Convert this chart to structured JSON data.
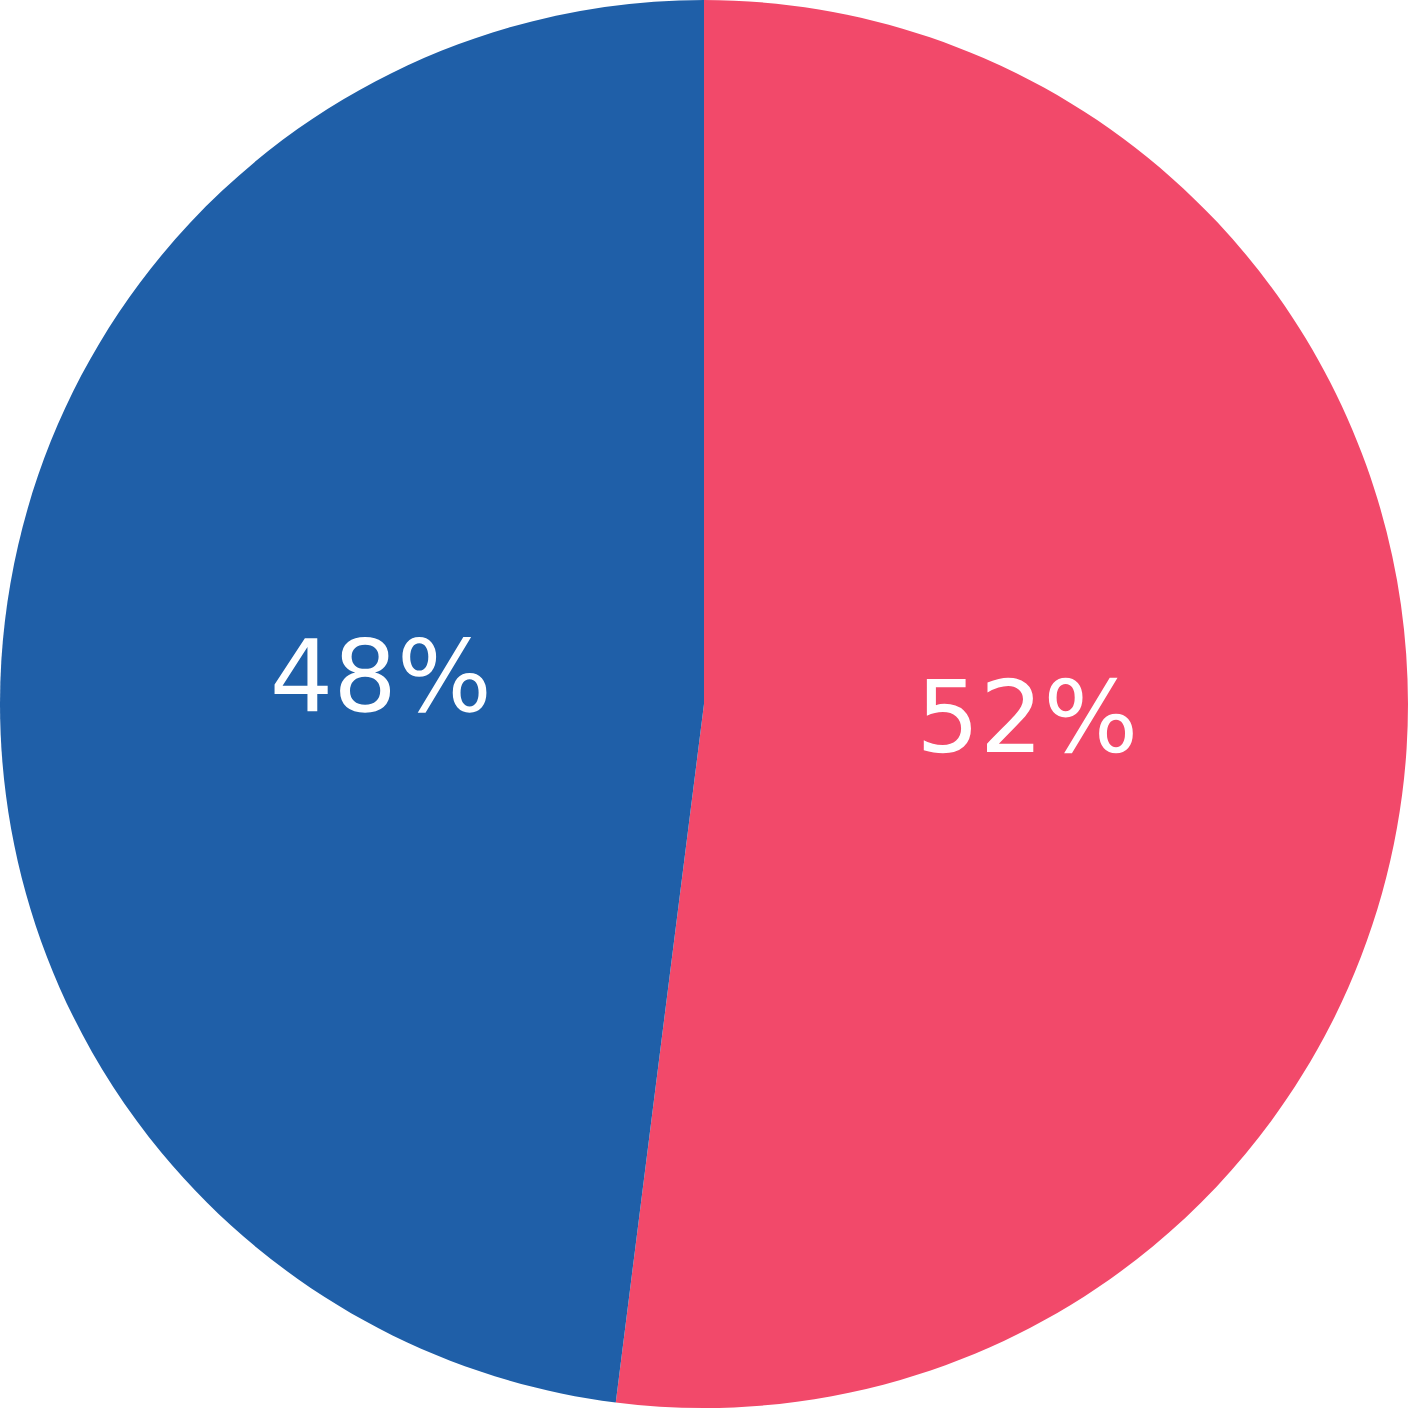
{
  "chart_data": {
    "type": "pie",
    "categories": [
      null,
      null
    ],
    "values": [
      52,
      48
    ],
    "colors": [
      "#f2496a",
      "#1f5fa8"
    ],
    "value_labels": [
      "52%",
      "48%"
    ]
  }
}
